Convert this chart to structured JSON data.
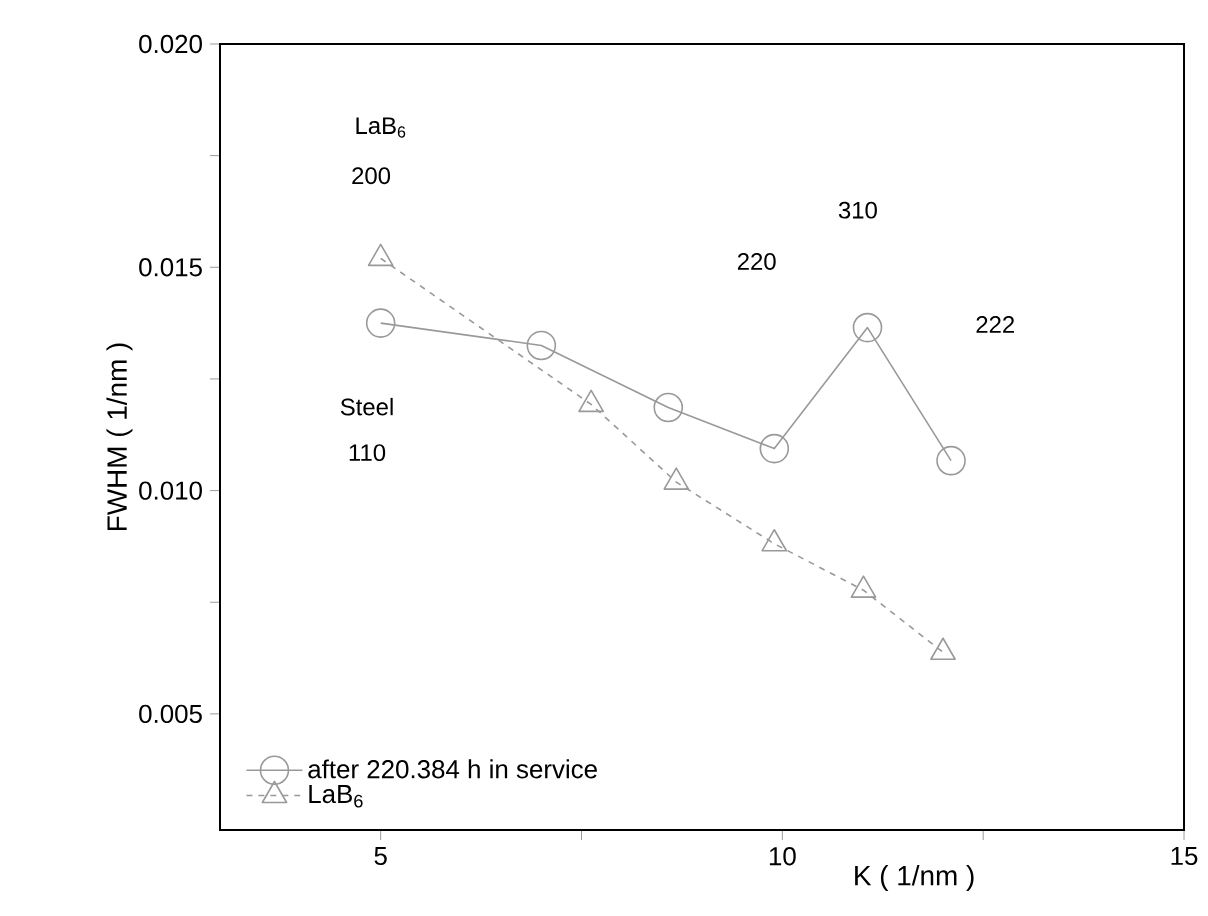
{
  "chart_data": {
    "type": "line",
    "xlabel": "K ( 1/nm )",
    "ylabel": "FWHM ( 1/nm )",
    "series": [
      {
        "name": "after 220.384 h in service",
        "color": "#999999",
        "marker": "circle",
        "line_style": "solid",
        "x": [
          5.0,
          7.0,
          8.58,
          9.9,
          11.06,
          12.1
        ],
        "values": [
          0.01375,
          0.01325,
          0.01186,
          0.01094,
          0.01365,
          0.01067
        ]
      },
      {
        "name": "LaB$_{6}$",
        "color": "#999999",
        "marker": "triangle",
        "line_style": "dashed",
        "x": [
          5.0,
          7.62,
          8.68,
          9.9,
          11.01,
          12.0
        ],
        "values": [
          0.0152,
          0.01193,
          0.01019,
          0.00881,
          0.00777,
          0.00638
        ]
      }
    ],
    "xlim": [
      3.0,
      15
    ],
    "ylim": [
      0.0024,
      0.02
    ],
    "xticks": [
      5,
      {
        "value": 7.5,
        "label": null
      },
      10,
      {
        "value": 12.5,
        "label": null
      },
      15
    ],
    "yticks": [
      0.005,
      {
        "value": 0.0075,
        "label": null
      },
      {
        "value": 0.01,
        "label": "0.010"
      },
      {
        "value": 0.0125,
        "label": null
      },
      0.015,
      {
        "value": 0.0175,
        "label": null
      },
      {
        "value": 0.02,
        "label": "0.020"
      }
    ],
    "annotations": [
      "LaB$_{6}$",
      "200",
      "Steel",
      "110",
      "220",
      "310",
      "222"
    ],
    "grid": false,
    "legend": "bottom left"
  }
}
